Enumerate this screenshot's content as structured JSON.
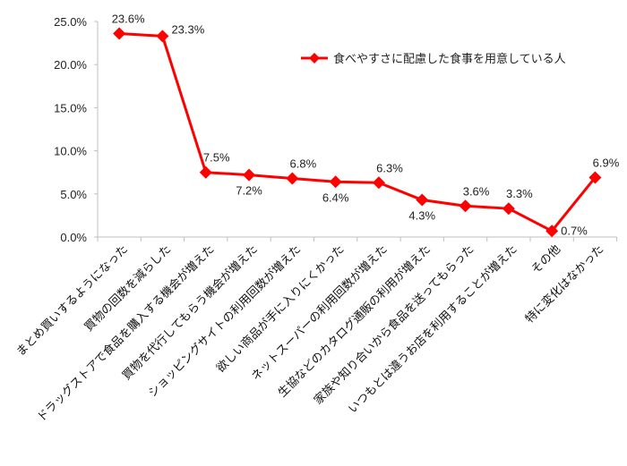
{
  "chart_data": {
    "type": "line",
    "title": "",
    "xlabel": "",
    "ylabel": "",
    "ylim": [
      0,
      25
    ],
    "y_ticks": [
      "0.0%",
      "5.0%",
      "10.0%",
      "15.0%",
      "20.0%",
      "25.0%"
    ],
    "grid": false,
    "legend_position": "top-right",
    "categories": [
      "まとめ買いするようになった",
      "買物の回数を減らした",
      "ドラッグストアで食品を購入する機会が増えた",
      "買物を代行してもらう機会が増えた",
      "ショッピングサイトの利用回数が増えた",
      "欲しい商品が手に入りにくかった",
      "ネットスーパーの利用回数が増えた",
      "生協などのカタログ通販の利用が増えた",
      "家族や知り合いから食品を送ってもらった",
      "いつもとは違うお店を利用することが増えた",
      "その他",
      "特に変化はなかった"
    ],
    "series": [
      {
        "name": "食べやすさに配慮した食事を用意している人",
        "color": "#ff0000",
        "marker": "diamond",
        "values": [
          23.6,
          23.3,
          7.5,
          7.2,
          6.8,
          6.4,
          6.3,
          4.3,
          3.6,
          3.3,
          0.7,
          6.9
        ],
        "labels": [
          "23.6%",
          "23.3%",
          "7.5%",
          "7.2%",
          "6.8%",
          "6.4%",
          "6.3%",
          "4.3%",
          "3.6%",
          "3.3%",
          "0.7%",
          "6.9%"
        ],
        "label_positions": [
          "above",
          "right",
          "above",
          "below",
          "above",
          "below",
          "above",
          "below",
          "above",
          "above",
          "right",
          "above"
        ]
      }
    ]
  },
  "legend": {
    "label": "食べやすさに配慮した食事を用意している人"
  },
  "colors": {
    "series": "#ff0000",
    "axis": "#bfbfbf",
    "text": "#222222"
  }
}
